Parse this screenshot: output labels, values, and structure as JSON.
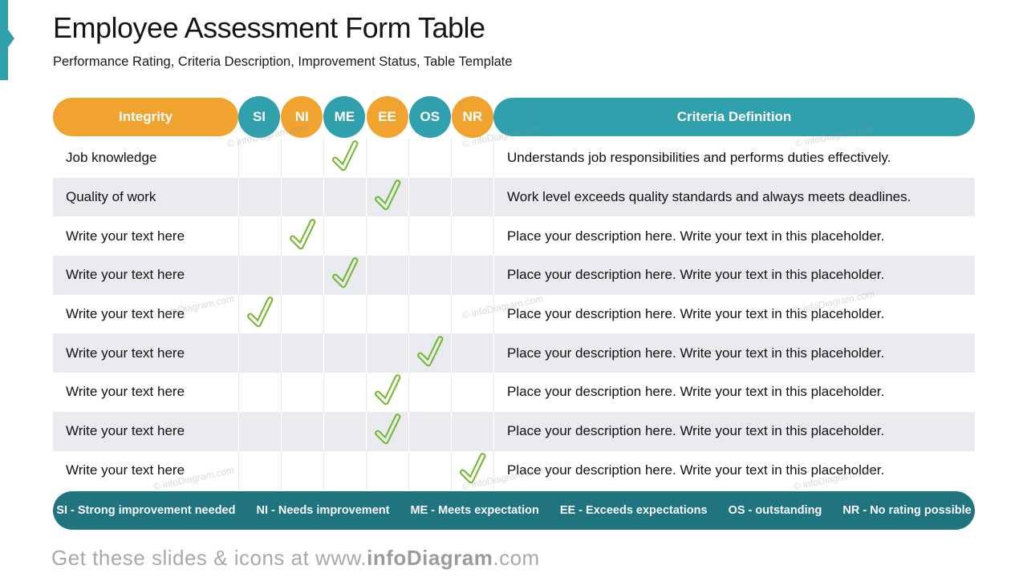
{
  "slide": {
    "title": "Employee Assessment Form Table",
    "subtitle": "Performance Rating, Criteria Description, Improvement Status, Table Template"
  },
  "colors": {
    "orange": "#F0A32E",
    "teal": "#2FA0AC",
    "dark_teal": "#1F747F",
    "row_alt": "#E9EBF0",
    "check_green": "#76B833"
  },
  "table": {
    "header": {
      "category_label": "Integrity",
      "rating_columns": [
        {
          "code": "SI",
          "color": "teal"
        },
        {
          "code": "NI",
          "color": "orange"
        },
        {
          "code": "ME",
          "color": "teal"
        },
        {
          "code": "EE",
          "color": "orange"
        },
        {
          "code": "OS",
          "color": "teal"
        },
        {
          "code": "NR",
          "color": "orange"
        }
      ],
      "definition_label": "Criteria Definition"
    },
    "rows": [
      {
        "label": "Job knowledge",
        "check": "ME",
        "definition": "Understands job responsibilities and performs duties effectively."
      },
      {
        "label": "Quality of work",
        "check": "EE",
        "definition": "Work level exceeds quality standards and always meets deadlines."
      },
      {
        "label": "Write your text here",
        "check": "NI",
        "definition": "Place your description here. Write your text in this placeholder."
      },
      {
        "label": "Write your text here",
        "check": "ME",
        "definition": "Place your description here. Write your text in this placeholder."
      },
      {
        "label": "Write your text here",
        "check": "SI",
        "definition": "Place your description here. Write your text in this placeholder."
      },
      {
        "label": "Write your text here",
        "check": "OS",
        "definition": "Place your description here. Write your text in this placeholder."
      },
      {
        "label": "Write your text here",
        "check": "EE",
        "definition": "Place your description here. Write your text in this placeholder."
      },
      {
        "label": "Write your text here",
        "check": "EE",
        "definition": "Place your description here. Write your text in this placeholder."
      },
      {
        "label": "Write your text here",
        "check": "NR",
        "definition": "Place your description here. Write your text in this placeholder."
      }
    ]
  },
  "legend": {
    "items": [
      "SI - Strong improvement needed",
      "NI - Needs improvement",
      "ME - Meets expectation",
      "EE - Exceeds expectations",
      "OS - outstanding",
      "NR - No rating possible"
    ]
  },
  "footer": {
    "prefix": "Get these slides & icons at www.",
    "brand": "infoDiagram",
    "suffix": ".com"
  },
  "watermark_text": "© infoDiagram.com"
}
